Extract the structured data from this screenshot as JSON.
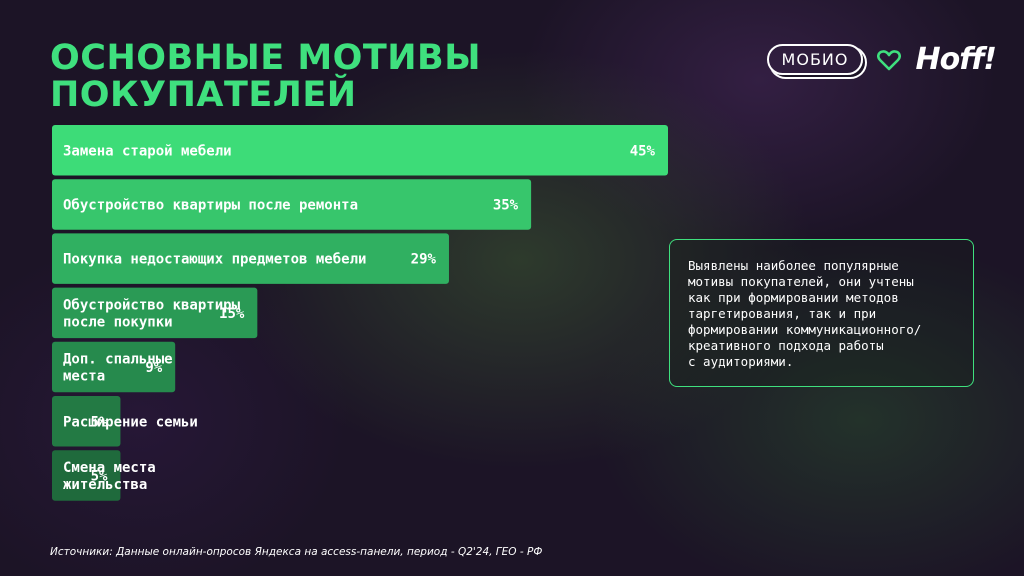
{
  "title": {
    "line1": "ОСНОВНЫЕ МОТИВЫ",
    "line2": "ПОКУПАТЕЛЕЙ"
  },
  "logos": {
    "partner": "МОБИО",
    "brand": "Hoff!"
  },
  "colors": {
    "accent": "#3fe07e",
    "bar_gradient": [
      "#3ddc78",
      "#2a9a55",
      "#1f6a3c"
    ]
  },
  "note": "Выявлены наиболее популярные\nмотивы покупателей, они учтены\nкак при формировании методов\nтаргетирования, так и при\nформировании коммуникационного/\nкреативного подхода работы\nс аудиториями.",
  "source": "Источники:  Данные онлайн-опросов Яндекса на access-панели,  период - Q2'24, ГЕО - РФ",
  "chart_data": {
    "type": "bar",
    "orientation": "horizontal",
    "categories": [
      [
        "Замена старой мебели"
      ],
      [
        "Обустройство квартиры после ремонта"
      ],
      [
        "Покупка недостающих предметов мебели"
      ],
      [
        "Обустройство квартиры",
        "после покупки"
      ],
      [
        "Доп. спальные",
        "места"
      ],
      [
        "Расширение семьи"
      ],
      [
        "Смена места",
        "жительства"
      ]
    ],
    "values": [
      45,
      35,
      29,
      15,
      9,
      5,
      5
    ],
    "value_labels": [
      "45%",
      "35%",
      "29%",
      "15%",
      "9%",
      "5%",
      "5%"
    ],
    "xlim": [
      0,
      45
    ],
    "grid": false,
    "legend": "none"
  }
}
